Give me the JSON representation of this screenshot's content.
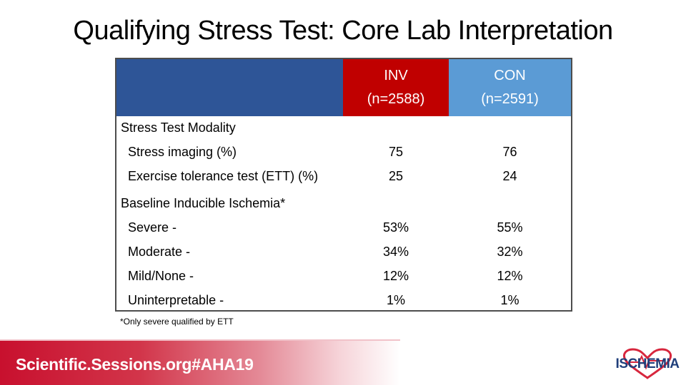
{
  "title": "Qualifying Stress Test: Core Lab Interpretation",
  "table": {
    "header": {
      "inv_line1": "INV",
      "inv_line2": "(n=2588)",
      "con_line1": "CON",
      "con_line2": "(n=2591)"
    },
    "rows": [
      {
        "label": "Stress Test Modality",
        "inv": "",
        "con": "",
        "section": true
      },
      {
        "label": "Stress imaging (%)",
        "inv": "75",
        "con": "76"
      },
      {
        "label": "Exercise tolerance test (ETT) (%)",
        "inv": "25",
        "con": "24"
      },
      {
        "label": "Baseline Inducible Ischemia*",
        "inv": "",
        "con": "",
        "section": true
      },
      {
        "label": "Severe -",
        "inv": "53%",
        "con": "55%"
      },
      {
        "label": "Moderate -",
        "inv": "34%",
        "con": "32%"
      },
      {
        "label": "Mild/None -",
        "inv": "12%",
        "con": "12%"
      },
      {
        "label": "Uninterpretable -",
        "inv": "1%",
        "con": "1%"
      }
    ]
  },
  "footnote": "*Only severe qualified by ETT",
  "footer": {
    "text": "Scientific.Sessions.org#AHA19",
    "logo_text": "ISCHEMIA"
  },
  "colors": {
    "header_blue": "#2e5597",
    "inv_red": "#c00000",
    "con_blue": "#5b9bd5",
    "footer_red": "#c8102e",
    "logo_navy": "#1f3e7a",
    "logo_heart": "#d7263d"
  }
}
